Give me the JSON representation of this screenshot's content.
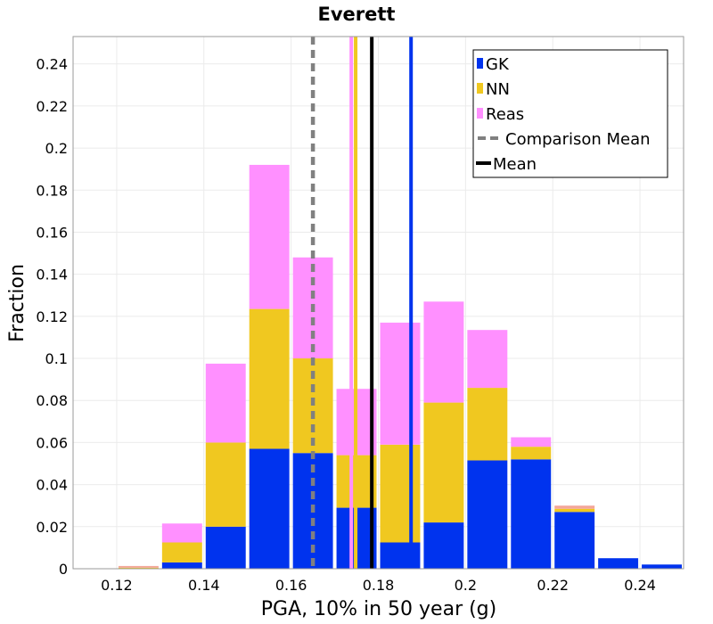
{
  "chart_data": {
    "type": "bar",
    "stacked": true,
    "title": "Everett",
    "xlabel": "PGA, 10% in 50 year (g)",
    "ylabel": "Fraction",
    "xlim": [
      0.11,
      0.25
    ],
    "ylim": [
      0,
      0.253
    ],
    "x_ticks": [
      0.12,
      0.14,
      0.16,
      0.18,
      0.2,
      0.22,
      0.24
    ],
    "x_tick_labels": [
      "0.12",
      "0.14",
      "0.16",
      "0.18",
      "0.2",
      "0.22",
      "0.24"
    ],
    "y_ticks": [
      0,
      0.02,
      0.04,
      0.06,
      0.08,
      0.1,
      0.12,
      0.14,
      0.16,
      0.18,
      0.2,
      0.22,
      0.24
    ],
    "y_tick_labels": [
      "0",
      "0.02",
      "0.04",
      "0.06",
      "0.08",
      "0.1",
      "0.12",
      "0.14",
      "0.16",
      "0.18",
      "0.2",
      "0.22",
      "0.24"
    ],
    "bin_width": 0.01,
    "bin_centers": [
      0.115,
      0.125,
      0.135,
      0.145,
      0.155,
      0.165,
      0.175,
      0.185,
      0.195,
      0.205,
      0.215,
      0.225,
      0.235,
      0.245
    ],
    "series": [
      {
        "name": "GK",
        "color": "#0033ee",
        "values": [
          0,
          0,
          0.003,
          0.02,
          0.057,
          0.055,
          0.029,
          0.0125,
          0.022,
          0.0515,
          0.052,
          0.027,
          0.005,
          0.002
        ]
      },
      {
        "name": "NN",
        "color": "#f0c820",
        "values": [
          0,
          0.0005,
          0.0095,
          0.04,
          0.0665,
          0.045,
          0.025,
          0.0465,
          0.057,
          0.0345,
          0.006,
          0.0015,
          0,
          0
        ]
      },
      {
        "name": "Reas",
        "color": "#ff90ff",
        "values": [
          0,
          0,
          0.009,
          0.0375,
          0.0685,
          0.048,
          0.0315,
          0.058,
          0.048,
          0.0275,
          0.0045,
          0,
          0,
          0
        ]
      }
    ],
    "extra_series": [
      {
        "name": "Salmon",
        "color": "#f4a69a",
        "values": [
          0,
          0.0008,
          0,
          0,
          0,
          0,
          0,
          0,
          0,
          0,
          0,
          0.0015,
          0,
          0
        ]
      }
    ],
    "vertical_lines": [
      {
        "name": "Comparison Mean",
        "x": 0.165,
        "style": "dashed",
        "color": "#808080"
      },
      {
        "name": "Mean",
        "x": 0.1785,
        "style": "solid",
        "color": "#000000"
      },
      {
        "name": "GK mean",
        "x": 0.1875,
        "style": "solid",
        "color": "#0033ee",
        "ymax": 0.253
      },
      {
        "name": "NN mean",
        "x": 0.1748,
        "style": "solid",
        "color": "#f0c820",
        "ymax": 0.253
      },
      {
        "name": "Reas mean",
        "x": 0.1738,
        "style": "solid",
        "color": "#ff90ff",
        "ymax": 0.253
      }
    ],
    "legend": {
      "position": "top-right",
      "entries": [
        {
          "label": "GK",
          "type": "box",
          "color": "#0033ee"
        },
        {
          "label": "NN",
          "type": "box",
          "color": "#f0c820"
        },
        {
          "label": "Reas",
          "type": "box",
          "color": "#ff90ff"
        },
        {
          "label": "Comparison Mean",
          "type": "dashed",
          "color": "#808080"
        },
        {
          "label": "Mean",
          "type": "solid",
          "color": "#000000"
        }
      ]
    },
    "grid": true
  }
}
